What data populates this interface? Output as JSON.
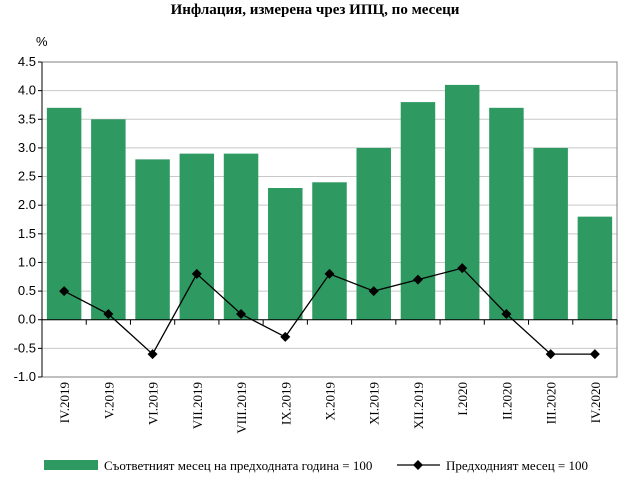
{
  "chart_data": {
    "type": "bar",
    "title": "Инфлация, измерена чрез ИПЦ, по месеци",
    "ylabel": "%",
    "ylim": [
      -1.0,
      4.5
    ],
    "yticks": [
      "4.5",
      "4.0",
      "3.5",
      "3.0",
      "2.5",
      "2.0",
      "1.5",
      "1.0",
      "0.5",
      "0.0",
      "-0.5",
      "-1.0"
    ],
    "grid": true,
    "legend_position": "bottom",
    "categories": [
      "IV.2019",
      "V.2019",
      "VI.2019",
      "VII.2019",
      "VIII.2019",
      "IX.2019",
      "X.2019",
      "XI.2019",
      "XII.2019",
      "I.2020",
      "II.2020",
      "III.2020",
      "IV.2020"
    ],
    "series": [
      {
        "name": "Съответният месец на предходната година = 100",
        "kind": "bar",
        "color": "#2e9a62",
        "values": [
          3.7,
          3.5,
          2.8,
          2.9,
          2.9,
          2.3,
          2.4,
          3.0,
          3.8,
          4.1,
          3.7,
          3.0,
          1.8
        ]
      },
      {
        "name": "Предходният месец = 100",
        "kind": "line",
        "color": "#000000",
        "values": [
          0.5,
          0.1,
          -0.6,
          0.8,
          0.1,
          -0.3,
          0.8,
          0.5,
          0.7,
          0.9,
          0.1,
          -0.6,
          -0.6
        ]
      }
    ]
  }
}
